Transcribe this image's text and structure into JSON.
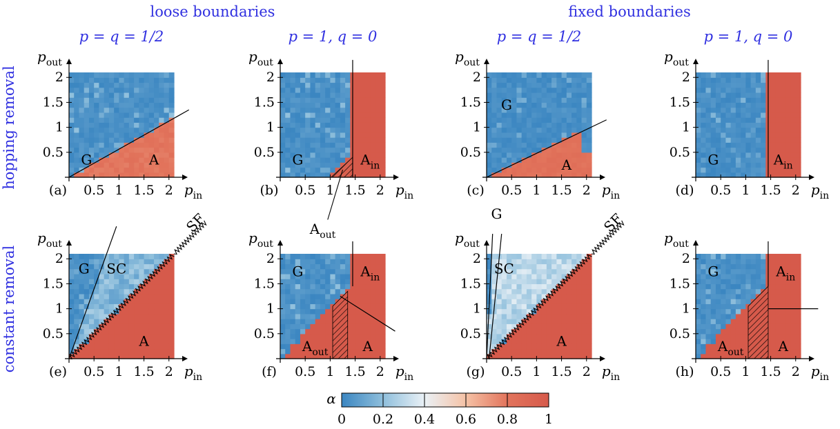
{
  "header": {
    "group_titles": [
      "loose boundaries",
      "fixed boundaries"
    ],
    "row_titles": [
      "hopping removal",
      "constant removal"
    ]
  },
  "colors": {
    "cmap": [
      "#3b86c1",
      "#8fbfdc",
      "#eaf1f6",
      "#f5c2a6",
      "#e2745c",
      "#d65a4b"
    ],
    "title_blue": "#3030e0",
    "hopping_blue": "#3b86c1",
    "constant_red": "#d65a4b",
    "sc_light": "#d2e4f0"
  },
  "colorbar": {
    "label": "α",
    "ticks": [
      "0",
      "0.2",
      "0.4",
      "0.6",
      "0.8",
      "1"
    ]
  },
  "chart_data": [
    {
      "id": "a",
      "type": "heatmap",
      "label": "(a)",
      "column_title": "p = q = 1/2",
      "xlabel": "p_in",
      "ylabel": "p_out",
      "xlim": [
        0,
        2.1
      ],
      "ylim": [
        0,
        2.1
      ],
      "xticks": [
        "0.5",
        "1",
        "1.5",
        "2"
      ],
      "yticks": [
        "0.5",
        "1",
        "1.5",
        "2"
      ],
      "seed": 11,
      "base_noise": 0.07,
      "regions": [
        {
          "poly": [
            [
              0,
              0
            ],
            [
              2.1,
              1.2
            ],
            [
              2.1,
              0
            ]
          ],
          "alpha": 0.8,
          "noise": 0.03
        }
      ],
      "lines": [
        [
          [
            0,
            0
          ],
          [
            2.4,
            1.35
          ]
        ]
      ],
      "hatch": [],
      "sawtooth": [],
      "region_labels": [
        {
          "text": "G",
          "x": 0.35,
          "y": 0.35
        },
        {
          "text": "A",
          "x": 1.7,
          "y": 0.35
        }
      ],
      "callouts": []
    },
    {
      "id": "b",
      "type": "heatmap",
      "label": "(b)",
      "column_title": "p = 1, q = 0",
      "xlabel": "p_in",
      "ylabel": "p_out",
      "xlim": [
        0,
        2.1
      ],
      "ylim": [
        0,
        2.1
      ],
      "xticks": [
        "0.5",
        "1",
        "1.5",
        "2"
      ],
      "yticks": [
        "0.5",
        "1",
        "1.5",
        "2"
      ],
      "seed": 23,
      "base_noise": 0.07,
      "regions": [
        {
          "poly": [
            [
              1.45,
              0
            ],
            [
              1.45,
              2.1
            ],
            [
              2.1,
              2.1
            ],
            [
              2.1,
              0
            ]
          ],
          "alpha": 1,
          "noise": 0
        },
        {
          "poly": [
            [
              1,
              0
            ],
            [
              1.45,
              0
            ],
            [
              1.45,
              0.45
            ]
          ],
          "alpha": 0.95,
          "noise": 0
        }
      ],
      "lines": [
        [
          [
            1.45,
            0
          ],
          [
            1.45,
            2.35
          ]
        ]
      ],
      "hatch": [
        [
          [
            1.02,
            0
          ],
          [
            1.45,
            0
          ],
          [
            1.45,
            0.4
          ]
        ]
      ],
      "sawtooth": [],
      "region_labels": [
        {
          "text": "G",
          "x": 0.35,
          "y": 0.35
        },
        {
          "text": "A_in",
          "x": 1.8,
          "y": 0.35
        }
      ],
      "callouts": [
        {
          "text": "A_out",
          "x0": 1.25,
          "y0": 0.15,
          "x1": 0.95,
          "y1": -0.85,
          "tx": 0.85,
          "ty": -1.05
        }
      ]
    },
    {
      "id": "c",
      "type": "heatmap",
      "label": "(c)",
      "column_title": "p = q = 1/2",
      "xlabel": "p_in",
      "ylabel": "p_out",
      "xlim": [
        0,
        2.1
      ],
      "ylim": [
        0,
        2.1
      ],
      "xticks": [
        "0.5",
        "1",
        "1.5",
        "2"
      ],
      "yticks": [
        "0.5",
        "1",
        "1.5",
        "2"
      ],
      "seed": 37,
      "base_noise": 0.05,
      "regions": [
        {
          "poly": [
            [
              0,
              0
            ],
            [
              1.9,
              0.95
            ],
            [
              1.9,
              0.5
            ],
            [
              2.1,
              0.5
            ],
            [
              2.1,
              0
            ]
          ],
          "alpha": 0.82,
          "noise": 0.03
        }
      ],
      "lines": [
        [
          [
            0,
            0
          ],
          [
            2.4,
            1.15
          ]
        ]
      ],
      "hatch": [],
      "sawtooth": [],
      "region_labels": [
        {
          "text": "G",
          "x": 0.4,
          "y": 1.45
        },
        {
          "text": "A",
          "x": 1.6,
          "y": 0.25
        }
      ],
      "callouts": []
    },
    {
      "id": "d",
      "type": "heatmap",
      "label": "(d)",
      "column_title": "p = 1, q = 0",
      "xlabel": "p_in",
      "ylabel": "p_out",
      "xlim": [
        0,
        2.1
      ],
      "ylim": [
        0,
        2.1
      ],
      "xticks": [
        "0.5",
        "1",
        "1.5",
        "2"
      ],
      "yticks": [
        "0.5",
        "1",
        "1.5",
        "2"
      ],
      "seed": 41,
      "base_noise": 0.06,
      "regions": [
        {
          "poly": [
            [
              1.45,
              0
            ],
            [
              1.45,
              2.1
            ],
            [
              2.1,
              2.1
            ],
            [
              2.1,
              0
            ]
          ],
          "alpha": 1,
          "noise": 0
        }
      ],
      "lines": [
        [
          [
            1.45,
            0
          ],
          [
            1.45,
            2.35
          ]
        ]
      ],
      "hatch": [],
      "sawtooth": [],
      "region_labels": [
        {
          "text": "G",
          "x": 0.35,
          "y": 0.35
        },
        {
          "text": "A_in",
          "x": 1.75,
          "y": 0.35
        }
      ],
      "callouts": []
    },
    {
      "id": "e",
      "type": "heatmap",
      "label": "(e)",
      "column_title": "",
      "xlabel": "p_in",
      "ylabel": "p_out",
      "xlim": [
        0,
        2.1
      ],
      "ylim": [
        0,
        2.1
      ],
      "xticks": [
        "0.5",
        "1",
        "1.5",
        "2"
      ],
      "yticks": [
        "0.5",
        "1",
        "1.5",
        "2"
      ],
      "seed": 53,
      "base_noise": 0.06,
      "regions": [
        {
          "poly": [
            [
              0,
              0
            ],
            [
              2.1,
              2.1
            ],
            [
              2.1,
              0
            ]
          ],
          "alpha": 1,
          "noise": 0
        },
        {
          "poly": [
            [
              0,
              0
            ],
            [
              0.75,
              2.1
            ],
            [
              2.1,
              2.1
            ]
          ],
          "alpha": 0.18,
          "noise": 0.08
        }
      ],
      "lines": [
        [
          [
            0,
            0
          ],
          [
            0.95,
            2.65
          ]
        ]
      ],
      "hatch": [],
      "sawtooth": [
        [
          [
            0,
            0
          ],
          [
            2.1,
            2.1
          ]
        ],
        [
          [
            2.1,
            2.1
          ],
          [
            2.75,
            2.75
          ]
        ]
      ],
      "region_labels": [
        {
          "text": "G",
          "x": 0.3,
          "y": 1.8
        },
        {
          "text": "SC",
          "x": 0.95,
          "y": 1.8
        },
        {
          "text": "A",
          "x": 1.5,
          "y": 0.35
        },
        {
          "text": "SF",
          "x": 2.6,
          "y": 2.75
        }
      ],
      "callouts": []
    },
    {
      "id": "f",
      "type": "heatmap",
      "label": "(f)",
      "column_title": "",
      "xlabel": "p_in",
      "ylabel": "p_out",
      "xlim": [
        0,
        2.1
      ],
      "ylim": [
        0,
        2.1
      ],
      "xticks": [
        "0.5",
        "1",
        "1.5",
        "2"
      ],
      "yticks": [
        "0.5",
        "1",
        "1.5",
        "2"
      ],
      "seed": 67,
      "base_noise": 0.07,
      "regions": [
        {
          "poly": [
            [
              0,
              0
            ],
            [
              1.45,
              1.45
            ],
            [
              1.45,
              2.1
            ],
            [
              2.1,
              2.1
            ],
            [
              2.1,
              0
            ]
          ],
          "alpha": 1,
          "noise": 0
        }
      ],
      "lines": [
        [
          [
            1.45,
            1.45
          ],
          [
            1.45,
            2.35
          ]
        ],
        [
          [
            1.2,
            1.25
          ],
          [
            2.3,
            0.55
          ]
        ]
      ],
      "hatch": [
        [
          [
            1.05,
            0
          ],
          [
            1.05,
            1.05
          ],
          [
            1.35,
            1.35
          ],
          [
            1.35,
            0
          ]
        ]
      ],
      "sawtooth": [],
      "region_labels": [
        {
          "text": "G",
          "x": 0.35,
          "y": 1.75
        },
        {
          "text": "A_in",
          "x": 1.8,
          "y": 1.75
        },
        {
          "text": "A_out",
          "x": 0.7,
          "y": 0.25
        },
        {
          "text": "A",
          "x": 1.75,
          "y": 0.25
        }
      ],
      "callouts": []
    },
    {
      "id": "g",
      "type": "heatmap",
      "label": "(g)",
      "column_title": "",
      "xlabel": "p_in",
      "ylabel": "p_out",
      "xlim": [
        0,
        2.1
      ],
      "ylim": [
        0,
        2.1
      ],
      "xticks": [
        "0.5",
        "1",
        "1.5",
        "2"
      ],
      "yticks": [
        "0.5",
        "1",
        "1.5",
        "2"
      ],
      "seed": 79,
      "base_noise": 0.08,
      "regions": [
        {
          "poly": [
            [
              0,
              0
            ],
            [
              2.1,
              2.1
            ],
            [
              2.1,
              0
            ]
          ],
          "alpha": 1,
          "noise": 0
        },
        {
          "poly": [
            [
              0,
              0
            ],
            [
              0.12,
              2.1
            ],
            [
              2.1,
              2.1
            ]
          ],
          "alpha": 0.3,
          "noise": 0.08
        }
      ],
      "lines": [
        [
          [
            0,
            0
          ],
          [
            0.12,
            2.5
          ]
        ],
        [
          [
            0.05,
            0
          ],
          [
            0.3,
            2.5
          ]
        ]
      ],
      "hatch": [],
      "sawtooth": [
        [
          [
            0,
            0
          ],
          [
            2.1,
            2.1
          ]
        ],
        [
          [
            2.1,
            2.1
          ],
          [
            2.75,
            2.75
          ]
        ]
      ],
      "region_labels": [
        {
          "text": "SC",
          "x": 0.35,
          "y": 1.8
        },
        {
          "text": "A",
          "x": 1.5,
          "y": 0.35
        },
        {
          "text": "SF",
          "x": 2.6,
          "y": 2.75
        },
        {
          "text": "G",
          "x": 0.2,
          "y": 2.9
        }
      ],
      "callouts": []
    },
    {
      "id": "h",
      "type": "heatmap",
      "label": "(h)",
      "column_title": "",
      "xlabel": "p_in",
      "ylabel": "p_out",
      "xlim": [
        0,
        2.1
      ],
      "ylim": [
        0,
        2.1
      ],
      "xticks": [
        "0.5",
        "1",
        "1.5",
        "2"
      ],
      "yticks": [
        "0.5",
        "1",
        "1.5",
        "2"
      ],
      "seed": 83,
      "base_noise": 0.07,
      "regions": [
        {
          "poly": [
            [
              0,
              0
            ],
            [
              1.45,
              1.45
            ],
            [
              1.45,
              2.1
            ],
            [
              2.1,
              2.1
            ],
            [
              2.1,
              0
            ]
          ],
          "alpha": 1,
          "noise": 0
        }
      ],
      "lines": [
        [
          [
            1.45,
            1.45
          ],
          [
            1.45,
            2.35
          ]
        ],
        [
          [
            1.45,
            1
          ],
          [
            2.45,
            1
          ]
        ]
      ],
      "hatch": [
        [
          [
            1.05,
            0
          ],
          [
            1.05,
            1.05
          ],
          [
            1.45,
            1.45
          ],
          [
            1.45,
            0
          ]
        ]
      ],
      "sawtooth": [],
      "region_labels": [
        {
          "text": "G",
          "x": 0.35,
          "y": 1.75
        },
        {
          "text": "A_in",
          "x": 1.8,
          "y": 1.75
        },
        {
          "text": "A_out",
          "x": 0.7,
          "y": 0.25
        },
        {
          "text": "A",
          "x": 1.75,
          "y": 0.25
        }
      ],
      "callouts": []
    }
  ]
}
